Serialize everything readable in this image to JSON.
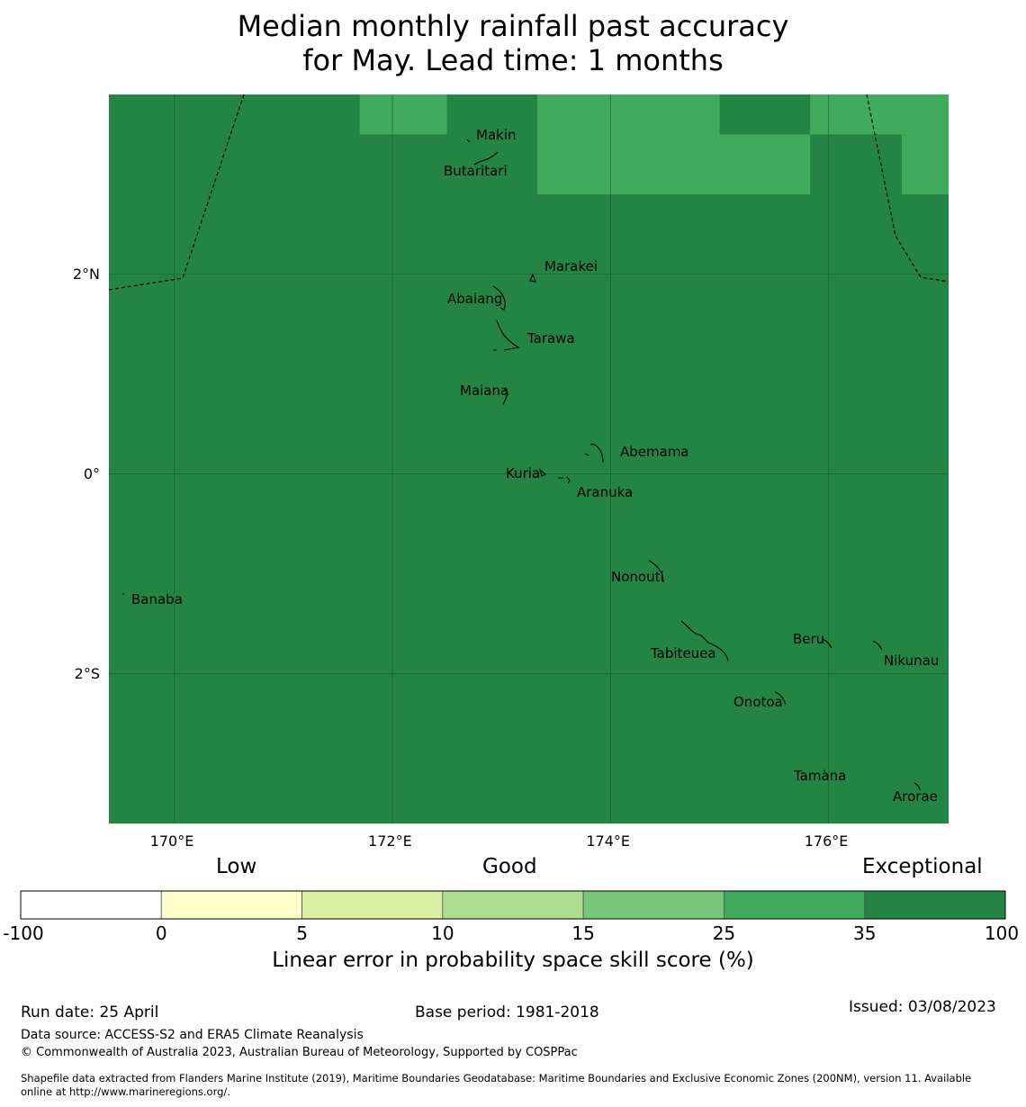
{
  "title": {
    "line1": "Median monthly rainfall past accuracy",
    "line2": "for May. Lead time: 1 months"
  },
  "map": {
    "lon_range": [
      169.4,
      177.1
    ],
    "lat_range": [
      -3.5,
      3.8
    ],
    "lon_ticks": [
      {
        "lon": 170,
        "label": "170°E"
      },
      {
        "lon": 172,
        "label": "172°E"
      },
      {
        "lon": 174,
        "label": "174°E"
      },
      {
        "lon": 176,
        "label": "176°E"
      }
    ],
    "lat_ticks": [
      {
        "lat": 2,
        "label": "2°N"
      },
      {
        "lat": 0,
        "label": "0°"
      },
      {
        "lat": -2,
        "label": "2°S"
      }
    ],
    "background_category_color": "#238443",
    "lighter_cells": [
      {
        "lon": [
          171.7,
          172.5
        ],
        "lat": [
          3.4,
          3.8
        ],
        "category": "25-35",
        "color": "#41ab5d"
      },
      {
        "lon": [
          173.33,
          175.0
        ],
        "lat": [
          2.8,
          3.8
        ],
        "category": "25-35",
        "color": "#41ab5d"
      },
      {
        "lon": [
          175.0,
          175.83
        ],
        "lat": [
          2.8,
          3.4
        ],
        "category": "25-35",
        "color": "#41ab5d"
      },
      {
        "lon": [
          175.83,
          177.1
        ],
        "lat": [
          3.4,
          3.8
        ],
        "category": "25-35",
        "color": "#41ab5d"
      },
      {
        "lon": [
          176.67,
          177.1
        ],
        "lat": [
          2.8,
          3.4
        ],
        "category": "25-35",
        "color": "#41ab5d"
      }
    ],
    "islands": [
      {
        "name": "Makin",
        "lon": 172.98,
        "lat": 3.36
      },
      {
        "name": "Butaritari",
        "lon": 172.77,
        "lat": 3.02
      },
      {
        "name": "Marakei",
        "lon": 173.47,
        "lat": 2.1
      },
      {
        "name": "Abaiang",
        "lon": 172.87,
        "lat": 1.82
      },
      {
        "name": "Tarawa",
        "lon": 173.5,
        "lat": 1.45
      },
      {
        "name": "Maiana",
        "lon": 172.78,
        "lat": 0.97
      },
      {
        "name": "Abemama",
        "lon": 174.41,
        "lat": 0.41
      },
      {
        "name": "Kuria",
        "lon": 172.87,
        "lat": 0.21
      },
      {
        "name": "Aranuka",
        "lon": 173.95,
        "lat": 0.03
      },
      {
        "name": "Nonouti",
        "lon": 174.23,
        "lat": -0.76
      },
      {
        "name": "Banaba",
        "lon": 169.98,
        "lat": -0.93
      },
      {
        "name": "Beru",
        "lon": 175.64,
        "lat": -1.31
      },
      {
        "name": "Tabiteuea",
        "lon": 174.68,
        "lat": -1.43
      },
      {
        "name": "Nikunau",
        "lon": 176.79,
        "lat": -1.5
      },
      {
        "name": "Onotoa",
        "lon": 175.45,
        "lat": -1.88
      },
      {
        "name": "Tamana",
        "lon": 175.94,
        "lat": -2.55
      },
      {
        "name": "Arorae",
        "lon": 176.82,
        "lat": -2.74
      }
    ]
  },
  "colorbar": {
    "category_labels": [
      "Low",
      "Good",
      "Exceptional"
    ],
    "ticks": [
      "-100",
      "0",
      "5",
      "10",
      "15",
      "25",
      "35",
      "100"
    ],
    "colors": [
      "#ffffff",
      "#ffffcc",
      "#d9f0a3",
      "#addd8e",
      "#78c679",
      "#41ab5d",
      "#238443"
    ],
    "title": "Linear error in probability space skill score (%)"
  },
  "footer": {
    "run_date": "Run date: 25 April",
    "base_period": "Base period: 1981-2018",
    "issued": "Issued: 03/08/2023",
    "data_source": "Data source: ACCESS-S2 and ERA5 Climate Reanalysis",
    "copyright": "© Commonwealth of Australia 2023, Australian Bureau of Meteorology, Supported by COSPPac",
    "shapefile_line1": "Shapefile data extracted from Flanders Marine Institute (2019), Maritime Boundaries Geodatabase: Maritime Boundaries and Exclusive Economic Zones (200NM), version 11. Available",
    "shapefile_line2": "online at http://www.marineregions.org/."
  }
}
